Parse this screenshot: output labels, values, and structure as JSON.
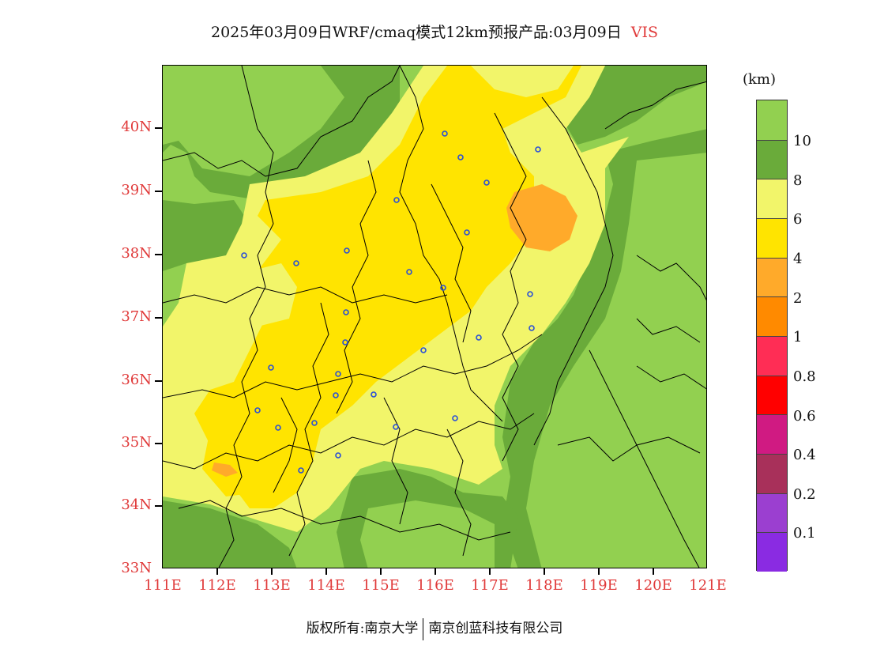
{
  "title": {
    "main": "2025年03月09日WRF/cmaq模式12km预报产品:03月09日",
    "variable": "VIS"
  },
  "map": {
    "lat_labels": [
      "40N",
      "39N",
      "38N",
      "37N",
      "36N",
      "35N",
      "34N",
      "33N"
    ],
    "lon_labels": [
      "111E",
      "112E",
      "113E",
      "114E",
      "115E",
      "116E",
      "117E",
      "118E",
      "119E",
      "120E",
      "121E"
    ],
    "colors": {
      "gt10": "#92d050",
      "8to10": "#6aab3a",
      "6to8": "#f2f56a",
      "4to6": "#ffe400",
      "2to4": "#ffaa2a",
      "station": "#2a4fd6",
      "border": "#000000"
    }
  },
  "colorbar": {
    "unit": "(km)",
    "labels": [
      "10",
      "8",
      "6",
      "4",
      "2",
      "1",
      "0.8",
      "0.6",
      "0.4",
      "0.2",
      "0.1"
    ],
    "colors": [
      "#92d050",
      "#6aab3a",
      "#f2f56a",
      "#ffe400",
      "#ffaa2a",
      "#ff8a00",
      "#ff2d55",
      "#ff0000",
      "#d01a82",
      "#a8305a",
      "#9b3fd0",
      "#8a2be2"
    ]
  },
  "footer": {
    "left": "版权所有:南京大学",
    "right": "南京创蓝科技有限公司"
  }
}
